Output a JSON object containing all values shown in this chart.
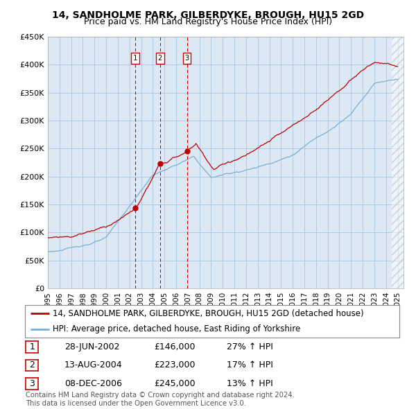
{
  "title": "14, SANDHOLME PARK, GILBERDYKE, BROUGH, HU15 2GD",
  "subtitle": "Price paid vs. HM Land Registry's House Price Index (HPI)",
  "ylim": [
    0,
    450000
  ],
  "yticks": [
    0,
    50000,
    100000,
    150000,
    200000,
    250000,
    300000,
    350000,
    400000,
    450000
  ],
  "ytick_labels": [
    "£0",
    "£50K",
    "£100K",
    "£150K",
    "£200K",
    "£250K",
    "£300K",
    "£350K",
    "£400K",
    "£450K"
  ],
  "xlim_start": 1995.0,
  "xlim_end": 2025.5,
  "background_color": "#ffffff",
  "plot_bg_color": "#dce9f5",
  "grid_color": "#aec8e0",
  "sale_color": "#bb0000",
  "hpi_color": "#7aadd4",
  "vline_color": "#cc0000",
  "transaction_markers": [
    {
      "year": 2002.49,
      "price": 146000,
      "label": "1"
    },
    {
      "year": 2004.62,
      "price": 223000,
      "label": "2"
    },
    {
      "year": 2006.93,
      "price": 245000,
      "label": "3"
    }
  ],
  "legend_sale_label": "14, SANDHOLME PARK, GILBERDYKE, BROUGH, HU15 2GD (detached house)",
  "legend_hpi_label": "HPI: Average price, detached house, East Riding of Yorkshire",
  "table_rows": [
    {
      "label": "1",
      "date": "28-JUN-2002",
      "price": "£146,000",
      "hpi": "27% ↑ HPI"
    },
    {
      "label": "2",
      "date": "13-AUG-2004",
      "price": "£223,000",
      "hpi": "17% ↑ HPI"
    },
    {
      "label": "3",
      "date": "08-DEC-2006",
      "price": "£245,000",
      "hpi": "13% ↑ HPI"
    }
  ],
  "footnote": "Contains HM Land Registry data © Crown copyright and database right 2024.\nThis data is licensed under the Open Government Licence v3.0.",
  "title_fontsize": 10,
  "subtitle_fontsize": 9,
  "tick_fontsize": 8,
  "legend_fontsize": 8.5,
  "table_fontsize": 9
}
